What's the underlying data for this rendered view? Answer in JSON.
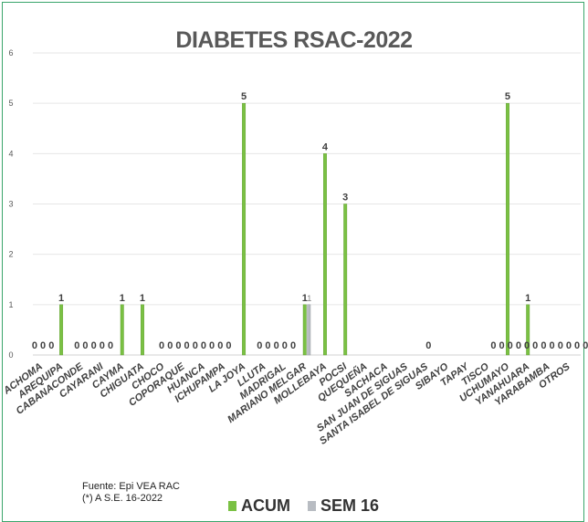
{
  "colors": {
    "acum": "#7ac143",
    "sem": "#b8bcc2",
    "frame": "#3aa56b",
    "grid": "#e6e6e6",
    "text": "#595959"
  },
  "source": {
    "line1": "Fuente:  Epi VEA RAC",
    "line2": "(*) A S.E. 16-2022"
  },
  "chart_data": {
    "type": "bar",
    "title": "DIABETES RSAC-2022",
    "xlabel": "",
    "ylabel": "",
    "ylim": [
      0,
      6
    ],
    "yticks": [
      0,
      1,
      2,
      3,
      4,
      5,
      6
    ],
    "grid": true,
    "legend_position": "bottom",
    "categories": [
      "ACHOMA",
      "AREQUIPA",
      "CABANACONDE",
      "CAYARANI",
      "CAYMA",
      "CHIGUATA",
      "CHOCO",
      "COPORAQUE",
      "HUANCA",
      "ICHUPAMPA",
      "LA JOYA",
      "LLUTA",
      "MADRIGAL",
      "MARIANO MELGAR",
      "MOLLEBAYA",
      "POCSI",
      "QUEQUEÑA",
      "SACHACA",
      "SAN JUAN DE SIGUAS",
      "SANTA ISABEL DE SIGUAS",
      "SIBAYO",
      "TAPAY",
      "TISCO",
      "UCHUMAYO",
      "YANAHUARA",
      "YARABAMBA",
      "OTROS"
    ],
    "series": [
      {
        "name": "ACUM",
        "values": [
          0,
          1,
          0,
          0,
          1,
          1,
          0,
          0,
          0,
          0,
          5,
          0,
          0,
          1,
          4,
          3,
          0,
          0,
          0,
          0,
          0,
          0,
          0,
          5,
          1,
          0,
          0
        ]
      },
      {
        "name": "SEM 16",
        "values": [
          0,
          0,
          0,
          0,
          0,
          0,
          0,
          0,
          0,
          0,
          0,
          0,
          0,
          1,
          0,
          0,
          0,
          0,
          0,
          0,
          0,
          0,
          0,
          0,
          0,
          0,
          0
        ]
      }
    ],
    "zero_labels": [
      "0 0 0",
      "0 0 0 0 0",
      "0 0 0 0 0 0 0 0 0",
      "0 0 0 0 0",
      "0",
      "0 0 0 0 0 0 0 0 0 0 0 0 0 0 0 0 0",
      "0 0 0 0"
    ],
    "value_labels": [
      "1",
      "1",
      "1",
      "5",
      "1",
      "1",
      "4",
      "3",
      "5",
      "1"
    ]
  }
}
